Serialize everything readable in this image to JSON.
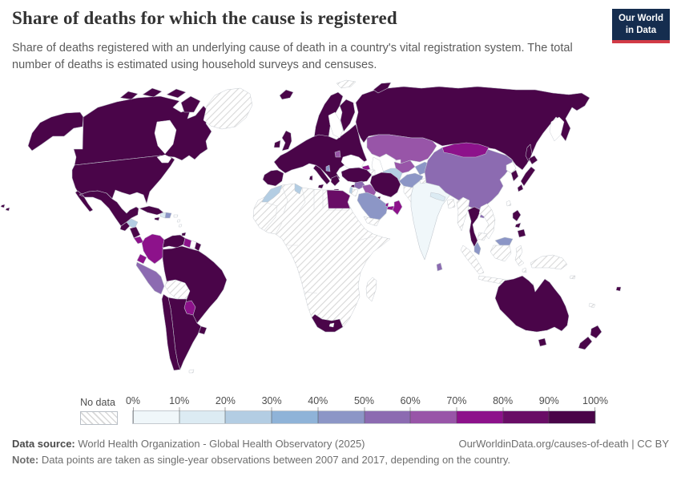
{
  "header": {
    "title": "Share of deaths for which the cause is registered",
    "subtitle": "Share of deaths registered with an underlying cause of death in a country's vital registration system. The total number of deaths is estimated using household surveys and censuses.",
    "logo": {
      "line1": "Our World",
      "line2": "in Data"
    }
  },
  "colors": {
    "brand_navy": "#152d4f",
    "brand_red": "#d23b46",
    "map_border": "#c2c8cf",
    "no_data_stripe": "#d8d8d8"
  },
  "legend": {
    "no_data_label": "No data",
    "tick_labels": [
      "0%",
      "10%",
      "20%",
      "30%",
      "40%",
      "50%",
      "60%",
      "70%",
      "80%",
      "90%",
      "100%"
    ],
    "bucket_colors": [
      "#f0f7fa",
      "#dcebf3",
      "#b3cde3",
      "#8fb3d8",
      "#8c96c6",
      "#8c6bb1",
      "#9855a8",
      "#8d128b",
      "#690d66",
      "#4a0549"
    ]
  },
  "footer": {
    "source_label": "Data source:",
    "source_text": " World Health Organization - Global Health Observatory (2025)",
    "credit": "OurWorldinData.org/causes-of-death | CC BY",
    "note_label": "Note:",
    "note_text": " Data points are taken as single-year observations between 2007 and 2017, depending on the country."
  },
  "map": {
    "region_colors": {
      "alaska": "#4a0549",
      "canada": "#4a0549",
      "arctic_islands": "#4a0549",
      "usa": "#4a0549",
      "mexico": "#4a0549",
      "guatemala": "#4a0549",
      "honduras": "#b3cde3",
      "nicaragua": "#4a0549",
      "costa_rica": "#8d128b",
      "panama": "#8d128b",
      "cuba": "#4a0549",
      "jamaica": "#4a0549",
      "haiti": "#dcebf3",
      "dominican_republic": "#8c96c6",
      "puerto_rico": "#ffffff",
      "trinidad": "#4a0549",
      "colombia": "#8d128b",
      "venezuela": "#4a0549",
      "guyana": "#8d128b",
      "suriname": "#ffffff",
      "french_guiana": "#4a0549",
      "ecuador": "#8d128b",
      "peru": "#8c6bb1",
      "brazil": "#4a0549",
      "paraguay": "#8d128b",
      "chile": "#4a0549",
      "argentina": "#4a0549",
      "uruguay": "#4a0549",
      "iceland": "#4a0549",
      "ireland": "#4a0549",
      "uk": "#4a0549",
      "scandinavia": "#4a0549",
      "finland": "#4a0549",
      "europe": "#4a0549",
      "iberia": "#4a0549",
      "italy": "#4a0549",
      "sicily": "#4a0549",
      "sardinia": "#4a0549",
      "greece": "#4a0549",
      "crete": "#4a0549",
      "albania": "#8c96c6",
      "moldova": "#9855a8",
      "russia": "#4a0549",
      "sakhalin": "#4a0549",
      "novaya_zemlya": "#4a0549",
      "kazakhstan": "#9855a8",
      "uzbekistan": "#9855a8",
      "turkmenistan": "#b3cde3",
      "kyrgyzstan_tajikistan": "#8c96c6",
      "afghanistan": "#8c96c6",
      "georgia": "#8d128b",
      "turkey": "#4a0549",
      "cyprus": "#4a0549",
      "syria": "#8c6bb1",
      "iraq": "#9855a8",
      "israel": "#b3cde3",
      "iran": "#4a0549",
      "kuwait": "#4a0549",
      "saudi_arabia": "#8c96c6",
      "qatar": "#8d128b",
      "uae": "#8d128b",
      "oman": "#8d128b",
      "egypt": "#690d66",
      "morocco": "#b3cde3",
      "tunisia": "#b3cde3",
      "south_africa": "#4a0549",
      "india": "#f0f7fa",
      "nepal": "#dcebf3",
      "sri_lanka": "#8c6bb1",
      "china": "#8c6bb1",
      "hainan": "#8c6bb1",
      "mongolia": "#8d128b",
      "north_korea": "#ffffff",
      "south_korea": "#4a0549",
      "japan": "#4a0549",
      "thailand": "#4a0549",
      "malaysia": "#8c96c6",
      "philippines": "#4a0549",
      "australia": "#4a0549",
      "new_zealand": "#4a0549",
      "fiji": "#4a0549",
      "hawaii": "#4a0549"
    }
  },
  "chart_data": {
    "type": "choropleth",
    "title": "Share of deaths for which the cause is registered",
    "unit": "%",
    "bin_edges": [
      0,
      10,
      20,
      30,
      40,
      50,
      60,
      70,
      80,
      90,
      100
    ],
    "bin_colors": [
      "#f0f7fa",
      "#dcebf3",
      "#b3cde3",
      "#8fb3d8",
      "#8c96c6",
      "#8c6bb1",
      "#9855a8",
      "#8d128b",
      "#690d66",
      "#4a0549"
    ],
    "no_data_label": "No data",
    "legend_position": "bottom",
    "regions_by_value_range": {
      "90-100%": [
        "Canada",
        "United States",
        "Mexico",
        "Guatemala",
        "Nicaragua",
        "Cuba",
        "Jamaica",
        "Trinidad and Tobago",
        "French Guiana",
        "Venezuela",
        "Brazil",
        "Chile",
        "Argentina",
        "Uruguay",
        "Iceland",
        "Ireland",
        "United Kingdom",
        "Norway",
        "Sweden",
        "Finland",
        "most of Europe",
        "Spain",
        "Portugal",
        "Italy",
        "Greece",
        "Turkey",
        "Cyprus",
        "Russia",
        "Iran",
        "Kuwait",
        "South Africa",
        "Thailand",
        "Philippines",
        "Japan",
        "South Korea",
        "Australia",
        "New Zealand",
        "Fiji"
      ],
      "80-90%": [
        "Egypt"
      ],
      "70-80%": [
        "Colombia",
        "Ecuador",
        "Guyana",
        "Paraguay",
        "Costa Rica",
        "Panama",
        "Oman",
        "United Arab Emirates",
        "Qatar",
        "Mongolia",
        "Georgia"
      ],
      "60-70%": [
        "Kazakhstan",
        "Uzbekistan",
        "Iraq",
        "Moldova"
      ],
      "50-60%": [
        "Peru",
        "China",
        "Syria",
        "Sri Lanka"
      ],
      "40-50%": [
        "Saudi Arabia",
        "Dominican Republic",
        "Malaysia",
        "Afghanistan",
        "Kyrgyzstan/Tajikistan",
        "Albania"
      ],
      "20-30%": [
        "Honduras",
        "Morocco",
        "Tunisia",
        "Turkmenistan",
        "Israel"
      ],
      "10-20%": [
        "Haiti",
        "Nepal"
      ],
      "0-10%": [
        "India"
      ],
      "No data": [
        "Greenland",
        "most of Africa",
        "Libya",
        "Algeria",
        "Sudan",
        "Nigeria",
        "Ethiopia",
        "Somalia",
        "Madagascar",
        "Bolivia",
        "Yemen",
        "Jordan",
        "Armenia",
        "Azerbaijan",
        "Pakistan",
        "Myanmar",
        "Laos",
        "Vietnam",
        "Cambodia",
        "Bangladesh",
        "Indonesia",
        "Papua New Guinea",
        "Taiwan",
        "New Caledonia"
      ]
    }
  }
}
